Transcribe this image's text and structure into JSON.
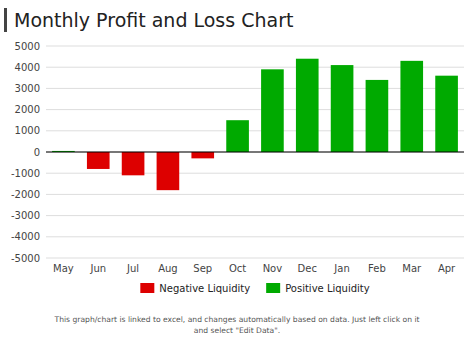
{
  "chart_data": {
    "type": "bar",
    "title": "Monthly Profit and Loss Chart",
    "categories": [
      "May",
      "Jun",
      "Jul",
      "Aug",
      "Sep",
      "Oct",
      "Nov",
      "Dec",
      "Jan",
      "Feb",
      "Mar",
      "Apr"
    ],
    "series": [
      {
        "name": "Negative Liquidity",
        "color": "#DD0000",
        "values": [
          null,
          -800,
          -1100,
          -1800,
          -300,
          null,
          null,
          null,
          null,
          null,
          null,
          null
        ]
      },
      {
        "name": "Positive Liquidity",
        "color": "#00AA00",
        "values": [
          50,
          null,
          null,
          null,
          null,
          1500,
          3900,
          4400,
          4100,
          3400,
          4300,
          3600
        ]
      }
    ],
    "stacked": true,
    "ylim": [
      -5000,
      5000
    ],
    "yticks": [
      -5000,
      -4000,
      -3000,
      -2000,
      -1000,
      0,
      1000,
      2000,
      3000,
      4000,
      5000
    ],
    "grid": true,
    "annotations": [
      "This graph/chart is linked to excel, and changes automatically based on data. Just left click on it\nand select \"Edit Data\"."
    ]
  }
}
